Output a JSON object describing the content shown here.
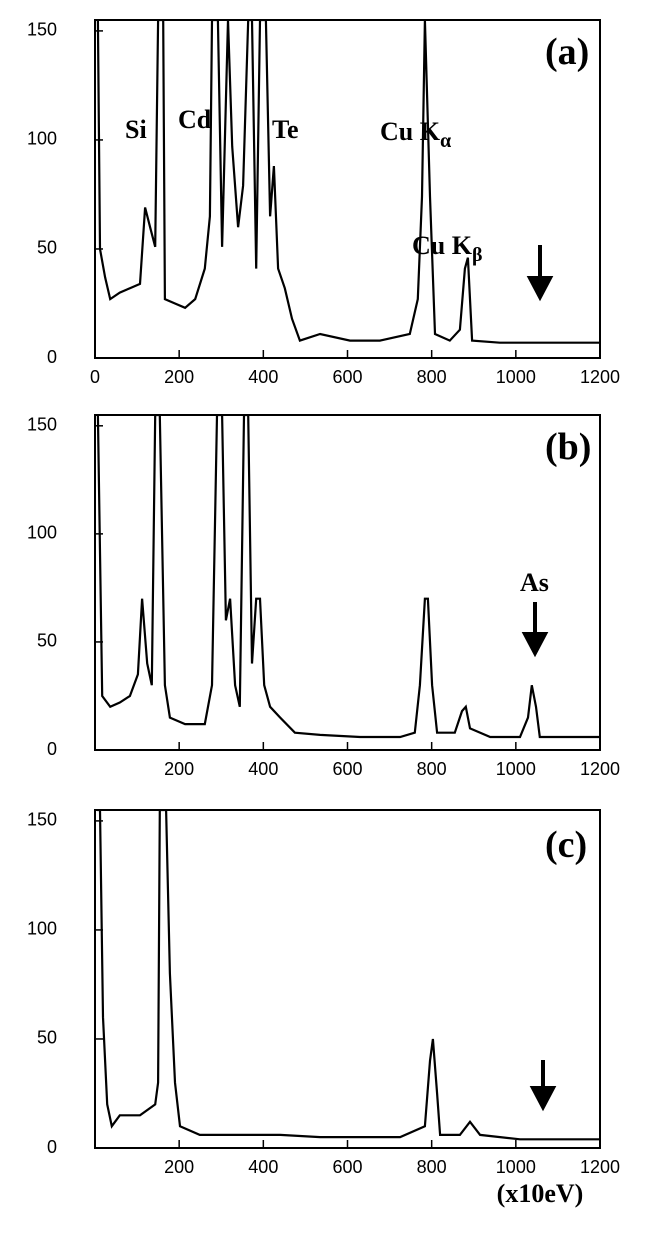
{
  "chart_data": [
    {
      "type": "line",
      "x": [
        7,
        12,
        24,
        36,
        59,
        83,
        107,
        119,
        131,
        143,
        150,
        162,
        166,
        190,
        214,
        238,
        261,
        273,
        278,
        292,
        302,
        316,
        326,
        340,
        352,
        364,
        373,
        383,
        392,
        406,
        416,
        425,
        435,
        451,
        468,
        487,
        535,
        606,
        677,
        748,
        767,
        777,
        784,
        796,
        808,
        843,
        867,
        879,
        886,
        896,
        962,
        1057,
        1105,
        1200
      ],
      "values": [
        155,
        50,
        37,
        27,
        30,
        32,
        34,
        69,
        60,
        51,
        155,
        155,
        27,
        25,
        23,
        27,
        41,
        65,
        155,
        155,
        51,
        155,
        97,
        60,
        79,
        155,
        155,
        41,
        155,
        155,
        65,
        88,
        41,
        32,
        18,
        8,
        11,
        8,
        8,
        11,
        27,
        74,
        155,
        74,
        11,
        8,
        13,
        41,
        46,
        8,
        7,
        7,
        7,
        7
      ],
      "xlim": [
        0,
        1200
      ],
      "ylim": [
        0,
        155
      ],
      "xticks": [
        0,
        200,
        400,
        600,
        800,
        1000,
        1200
      ],
      "yticks": [
        0,
        50,
        100,
        150
      ],
      "annotations": [
        {
          "text": "(a)"
        },
        {
          "text": "Si"
        },
        {
          "text": "Cd"
        },
        {
          "text": "Te"
        },
        {
          "text": "Cu K",
          "sub": "α"
        },
        {
          "text": "Cu K",
          "sub": "β"
        }
      ]
    },
    {
      "type": "line",
      "x": [
        7,
        17,
        36,
        59,
        83,
        102,
        112,
        124,
        135,
        143,
        154,
        166,
        178,
        214,
        261,
        278,
        290,
        302,
        311,
        321,
        333,
        344,
        354,
        364,
        373,
        383,
        392,
        402,
        416,
        440,
        475,
        535,
        630,
        725,
        760,
        772,
        784,
        791,
        801,
        813,
        855,
        872,
        881,
        891,
        939,
        1010,
        1029,
        1038,
        1048,
        1057,
        1129,
        1200
      ],
      "values": [
        155,
        25,
        20,
        22,
        25,
        35,
        70,
        40,
        30,
        155,
        155,
        30,
        15,
        12,
        12,
        30,
        155,
        155,
        60,
        70,
        30,
        20,
        155,
        155,
        40,
        70,
        70,
        30,
        20,
        15,
        8,
        7,
        6,
        6,
        8,
        30,
        70,
        70,
        30,
        8,
        8,
        18,
        20,
        10,
        6,
        6,
        15,
        30,
        20,
        6,
        6,
        6
      ],
      "xlim": [
        0,
        1200
      ],
      "ylim": [
        0,
        155
      ],
      "xticks": [
        200,
        400,
        600,
        800,
        1000,
        1200
      ],
      "yticks": [
        0,
        50,
        100,
        150
      ],
      "annotations": [
        {
          "text": "(b)"
        },
        {
          "text": "As"
        }
      ]
    },
    {
      "type": "line",
      "x": [
        5,
        12,
        19,
        29,
        40,
        59,
        107,
        143,
        150,
        154,
        169,
        178,
        190,
        202,
        249,
        345,
        440,
        535,
        630,
        725,
        784,
        796,
        803,
        813,
        820,
        867,
        891,
        915,
        1010,
        1200
      ],
      "values": [
        155,
        155,
        60,
        20,
        10,
        15,
        15,
        20,
        30,
        155,
        155,
        80,
        30,
        10,
        6,
        6,
        6,
        5,
        5,
        5,
        10,
        40,
        50,
        25,
        6,
        6,
        12,
        6,
        4,
        4
      ],
      "xlim": [
        0,
        1200
      ],
      "ylim": [
        0,
        155
      ],
      "xticks": [
        200,
        400,
        600,
        800,
        1000,
        1200
      ],
      "yticks": [
        0,
        50,
        100,
        150
      ],
      "xlabel": "(x10eV)",
      "annotations": [
        {
          "text": "(c)"
        }
      ]
    }
  ]
}
